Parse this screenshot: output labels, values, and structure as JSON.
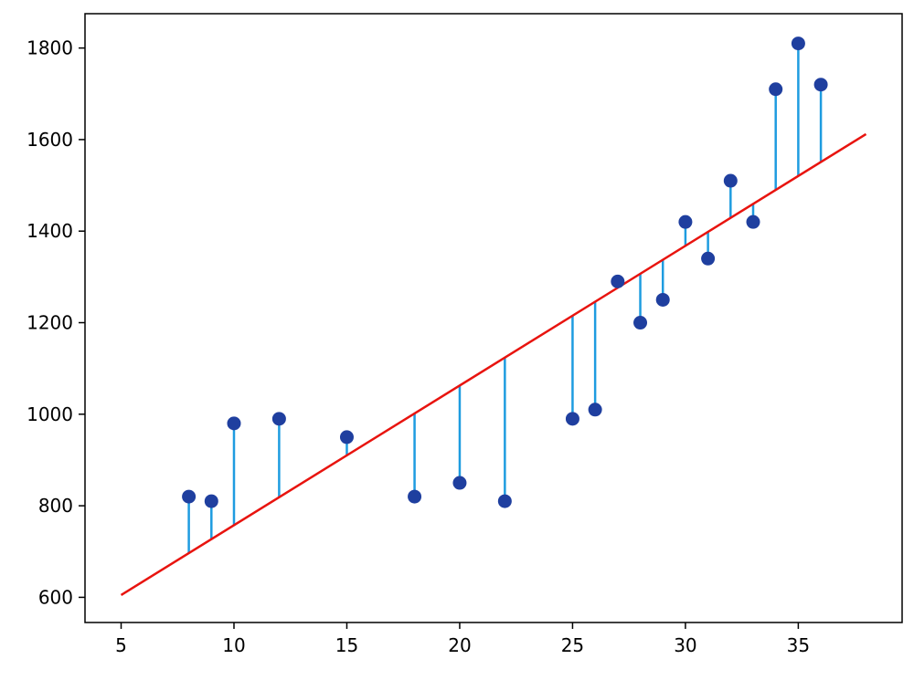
{
  "chart_data": {
    "type": "scatter",
    "title": "",
    "xlabel": "",
    "ylabel": "",
    "xlim": [
      3.4,
      39.6
    ],
    "ylim": [
      545,
      1875
    ],
    "x_ticks": [
      5,
      10,
      15,
      20,
      25,
      30,
      35
    ],
    "y_ticks": [
      600,
      800,
      1000,
      1200,
      1400,
      1600,
      1800
    ],
    "grid": false,
    "legend": "none",
    "points": {
      "x": [
        8,
        9,
        10,
        12,
        15,
        18,
        20,
        22,
        25,
        26,
        27,
        28,
        29,
        30,
        31,
        32,
        33,
        34,
        35,
        36
      ],
      "y": [
        820,
        810,
        980,
        990,
        950,
        820,
        850,
        810,
        990,
        1010,
        1290,
        1200,
        1250,
        1420,
        1340,
        1510,
        1420,
        1710,
        1810,
        1720
      ],
      "color": "#1f3f9f"
    },
    "fit_line": {
      "x": [
        5,
        38
      ],
      "y": [
        605,
        1612
      ],
      "color": "#e8140f"
    },
    "residual_color": "#1e9ce0"
  }
}
